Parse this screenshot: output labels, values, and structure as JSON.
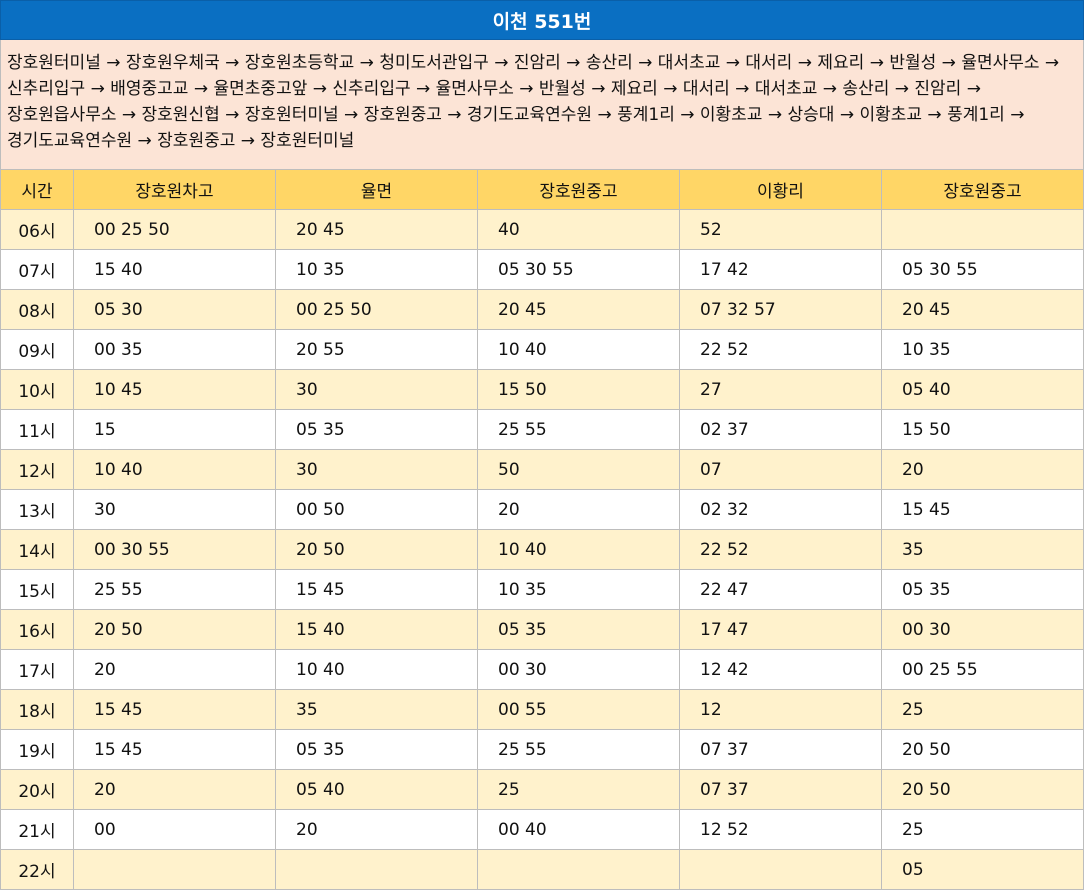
{
  "title": "이천 551번",
  "route": "장호원터미널 → 장호원우체국 → 장호원초등학교 → 청미도서관입구 → 진암리 → 송산리 → 대서초교 → 대서리 → 제요리 → 반월성 → 율면사무소 → 신추리입구 → 배영중고교 → 율면초중고앞 → 신추리입구 → 율면사무소 → 반월성 → 제요리 → 대서리 → 대서초교 → 송산리 → 진암리 → 장호원읍사무소 → 장호원신협 → 장호원터미널 → 장호원중고 → 경기도교육연수원 → 풍계1리 → 이황초교 → 상승대 → 이황초교 → 풍계1리 → 경기도교육연수원 → 장호원중고 → 장호원터미널",
  "headers": [
    "시간",
    "장호원차고",
    "율면",
    "장호원중고",
    "이황리",
    "장호원중고"
  ],
  "rows": [
    [
      "06시",
      "00 25 50",
      "20 45",
      "40",
      "52",
      ""
    ],
    [
      "07시",
      "15 40",
      "10 35",
      "05 30 55",
      "17 42",
      "05 30 55"
    ],
    [
      "08시",
      "05 30",
      "00 25 50",
      "20 45",
      "07 32 57",
      "20 45"
    ],
    [
      "09시",
      "00 35",
      "20 55",
      "10 40",
      "22 52",
      "10 35"
    ],
    [
      "10시",
      "10 45",
      "30",
      "15 50",
      "27",
      "05 40"
    ],
    [
      "11시",
      "15",
      "05 35",
      "25 55",
      "02 37",
      "15 50"
    ],
    [
      "12시",
      "10 40",
      "30",
      "50",
      "07",
      "20"
    ],
    [
      "13시",
      "30",
      "00 50",
      "20",
      "02 32",
      "15 45"
    ],
    [
      "14시",
      "00 30 55",
      "20 50",
      "10 40",
      "22 52",
      "35"
    ],
    [
      "15시",
      "25 55",
      "15 45",
      "10 35",
      "22 47",
      "05 35"
    ],
    [
      "16시",
      "20 50",
      "15 40",
      "05 35",
      "17 47",
      "00 30"
    ],
    [
      "17시",
      "20",
      "10 40",
      "00 30",
      "12 42",
      "00 25 55"
    ],
    [
      "18시",
      "15 45",
      "35",
      "00 55",
      "12",
      "25"
    ],
    [
      "19시",
      "15 45",
      "05 35",
      "25 55",
      "07 37",
      "20 50"
    ],
    [
      "20시",
      "20",
      "05 40",
      "25",
      "07 37",
      "20 50"
    ],
    [
      "21시",
      "00",
      "20",
      "00 40",
      "12 52",
      "25"
    ],
    [
      "22시",
      "",
      "",
      "",
      "",
      "05"
    ]
  ]
}
